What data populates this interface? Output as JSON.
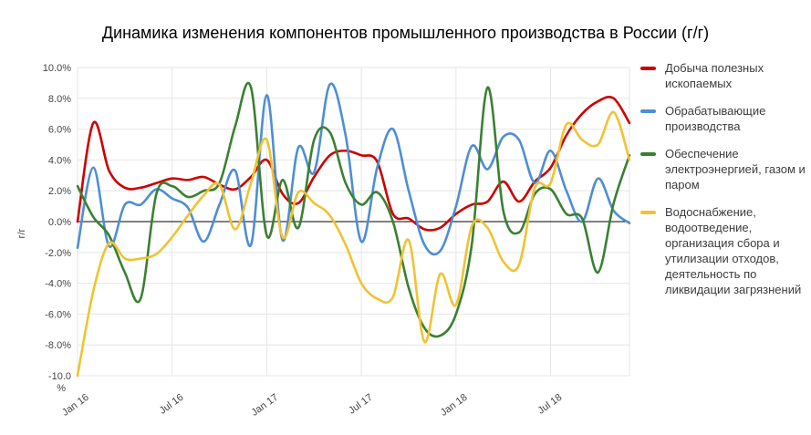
{
  "title": "Динамика изменения компонентов промышленного производства в России (г/г)",
  "style": {
    "background": "#ffffff",
    "title_color": "#000000",
    "grid_color": "#e6e6e6",
    "zero_line_color": "#000000",
    "axis_label_color": "#444444",
    "legend_text_color": "#3c3c3c"
  },
  "y_axis": {
    "title": "г/г",
    "ticks": [
      {
        "value": 10,
        "label": "10.0%"
      },
      {
        "value": 8,
        "label": "8.0%"
      },
      {
        "value": 6,
        "label": "6.0%"
      },
      {
        "value": 4,
        "label": "4.0%"
      },
      {
        "value": 2,
        "label": "2.0%"
      },
      {
        "value": 0,
        "label": "0.0%"
      },
      {
        "value": -2,
        "label": "-2.0%"
      },
      {
        "value": -4,
        "label": "-4.0%"
      },
      {
        "value": -6,
        "label": "-6.0%"
      },
      {
        "value": -8,
        "label": "-8.0%"
      },
      {
        "value": -10,
        "label": "-10.0",
        "label2": "%"
      }
    ]
  },
  "x_axis": {
    "ticks": [
      {
        "month_index": 0,
        "label": "Jan 16"
      },
      {
        "month_index": 6,
        "label": "Jul 16"
      },
      {
        "month_index": 12,
        "label": "Jan 17"
      },
      {
        "month_index": 18,
        "label": "Jul 17"
      },
      {
        "month_index": 24,
        "label": "Jan 18"
      },
      {
        "month_index": 30,
        "label": "Jul 18"
      }
    ]
  },
  "chart_data": {
    "type": "line",
    "smoothed": true,
    "legend_position": "right",
    "grid": true,
    "zero_line": true,
    "ylim": [
      -10,
      10
    ],
    "y_unit": "%",
    "x": [
      "Jan 16",
      "Feb 16",
      "Mar 16",
      "Apr 16",
      "May 16",
      "Jun 16",
      "Jul 16",
      "Aug 16",
      "Sep 16",
      "Oct 16",
      "Nov 16",
      "Dec 16",
      "Jan 17",
      "Feb 17",
      "Mar 17",
      "Apr 17",
      "May 17",
      "Jun 17",
      "Jul 17",
      "Aug 17",
      "Sep 17",
      "Oct 17",
      "Nov 17",
      "Dec 17",
      "Jan 18",
      "Feb 18",
      "Mar 18",
      "Apr 18",
      "May 18",
      "Jun 18",
      "Jul 18",
      "Aug 18",
      "Sep 18",
      "Oct 18",
      "Nov 18",
      "Dec 18"
    ],
    "series": [
      {
        "name": "Добыча полезных ископаемых",
        "color": "#cc0000",
        "values": [
          0.0,
          6.4,
          3.3,
          2.2,
          2.2,
          2.5,
          2.8,
          2.7,
          2.9,
          2.4,
          2.1,
          2.9,
          4.0,
          1.8,
          1.2,
          2.9,
          4.3,
          4.6,
          4.3,
          3.9,
          0.5,
          0.2,
          -0.5,
          -0.4,
          0.5,
          1.1,
          1.3,
          2.6,
          1.3,
          2.6,
          3.5,
          5.6,
          7.0,
          7.8,
          8.0,
          6.4
        ]
      },
      {
        "name": "Обрабатывающие производства",
        "color": "#4e8ed3",
        "values": [
          -1.7,
          3.5,
          -1.6,
          1.1,
          1.1,
          2.1,
          1.5,
          0.9,
          -1.3,
          1.1,
          3.3,
          -1.5,
          8.2,
          -1.2,
          4.8,
          3.2,
          8.9,
          5.6,
          -1.3,
          3.5,
          6.0,
          2.0,
          -1.5,
          -1.9,
          1.0,
          4.9,
          3.4,
          5.5,
          5.3,
          2.5,
          4.6,
          2.0,
          0.0,
          2.8,
          0.7,
          -0.1
        ]
      },
      {
        "name": "Обеспечение электроэнергией, газом и паром",
        "color": "#3a8032",
        "values": [
          2.3,
          0.3,
          -0.9,
          -3.3,
          -5.0,
          1.8,
          2.3,
          1.6,
          2.0,
          2.5,
          6.2,
          8.7,
          -0.9,
          2.7,
          -0.4,
          5.3,
          5.8,
          2.5,
          1.1,
          1.9,
          0.0,
          -4.3,
          -6.9,
          -7.4,
          -6.0,
          -1.5,
          8.7,
          0.7,
          -0.7,
          1.8,
          2.1,
          0.5,
          0.2,
          -3.3,
          1.2,
          4.3
        ]
      },
      {
        "name": "Водоснабжение, водоотведение, организация сбора и утилизации отходов, деятельность по ликвидации загрязнений",
        "color": "#f1c232",
        "values": [
          -10.0,
          -4.5,
          -1.4,
          -2.4,
          -2.4,
          -2.1,
          -1.0,
          0.4,
          1.7,
          2.4,
          -0.5,
          2.5,
          5.3,
          -1.0,
          1.9,
          1.2,
          0.4,
          -1.5,
          -4.0,
          -5.0,
          -4.9,
          -1.2,
          -7.8,
          -3.4,
          -5.4,
          -0.3,
          -0.4,
          -2.6,
          -2.8,
          2.2,
          2.5,
          6.3,
          5.3,
          5.0,
          7.1,
          4.0
        ]
      }
    ]
  }
}
